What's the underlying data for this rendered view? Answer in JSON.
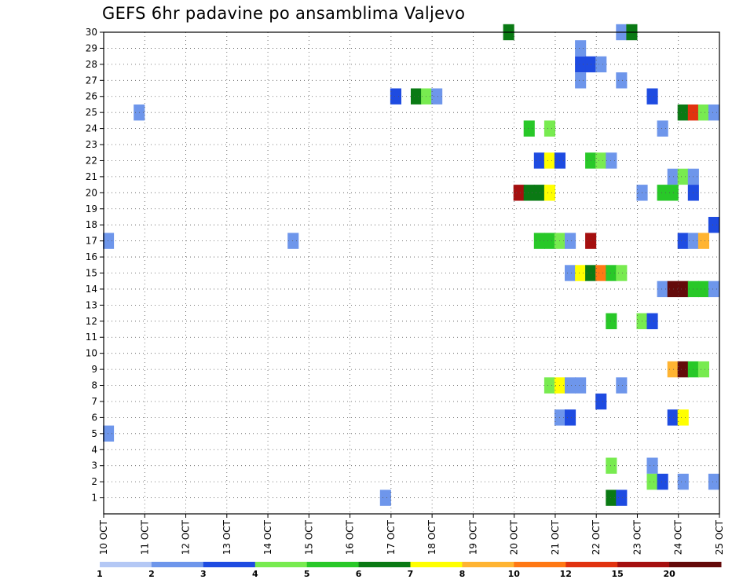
{
  "chart_data": {
    "type": "heatmap",
    "title": "GEFS 6hr padavine po ansamblima Valjevo",
    "xlabel": "",
    "ylabel": "",
    "y_ticks": [
      "1",
      "2",
      "3",
      "4",
      "5",
      "6",
      "7",
      "8",
      "9",
      "10",
      "11",
      "12",
      "13",
      "14",
      "15",
      "16",
      "17",
      "18",
      "19",
      "20",
      "21",
      "22",
      "23",
      "24",
      "25",
      "26",
      "27",
      "28",
      "29",
      "30"
    ],
    "x_ticks": [
      "10 OCT",
      "11 OCT",
      "12 OCT",
      "13 OCT",
      "14 OCT",
      "15 OCT",
      "16 OCT",
      "17 OCT",
      "18 OCT",
      "19 OCT",
      "20 OCT",
      "21 OCT",
      "22 OCT",
      "23 OCT",
      "24 OCT",
      "25 OCT"
    ],
    "xlim_days": [
      10,
      25
    ],
    "ylim": [
      0,
      30
    ],
    "time_step_hours": 6,
    "legend": {
      "labels": [
        "1",
        "2",
        "3",
        "4",
        "5",
        "6",
        "7",
        "8",
        "10",
        "12",
        "15",
        "20"
      ],
      "colors": [
        "#b4c8f5",
        "#6e96eb",
        "#1e4be1",
        "#78eb50",
        "#28c828",
        "#0a7a14",
        "#ffff00",
        "#ffb432",
        "#ff7814",
        "#e1320f",
        "#a50f0f",
        "#640a0a"
      ]
    },
    "cells": [
      {
        "m": 30,
        "t": [
          [
            19.75,
            5
          ],
          [
            22.5,
            1
          ],
          [
            22.75,
            5
          ]
        ]
      },
      {
        "m": 29,
        "t": [
          [
            21.5,
            1
          ]
        ]
      },
      {
        "m": 28,
        "t": [
          [
            21.5,
            2
          ],
          [
            21.75,
            2
          ],
          [
            22,
            1
          ]
        ]
      },
      {
        "m": 27,
        "t": [
          [
            21.5,
            1
          ],
          [
            22.5,
            1
          ]
        ]
      },
      {
        "m": 26,
        "t": [
          [
            17,
            2
          ],
          [
            17.5,
            5
          ],
          [
            17.75,
            3
          ],
          [
            18,
            1
          ],
          [
            23.25,
            2
          ]
        ]
      },
      {
        "m": 25,
        "t": [
          [
            10.75,
            1
          ],
          [
            24,
            5
          ],
          [
            24.25,
            9
          ],
          [
            24.5,
            3
          ],
          [
            24.75,
            1
          ]
        ]
      },
      {
        "m": 24,
        "t": [
          [
            20.25,
            4
          ],
          [
            20.75,
            3
          ],
          [
            23.5,
            1
          ]
        ]
      },
      {
        "m": 22,
        "t": [
          [
            20.5,
            2
          ],
          [
            20.75,
            6
          ],
          [
            21,
            2
          ],
          [
            21.75,
            4
          ],
          [
            22,
            3
          ],
          [
            22.25,
            1
          ]
        ]
      },
      {
        "m": 21,
        "t": [
          [
            23.75,
            1
          ],
          [
            24,
            3
          ],
          [
            24.25,
            1
          ]
        ]
      },
      {
        "m": 20,
        "t": [
          [
            20,
            10
          ],
          [
            20.25,
            5
          ],
          [
            20.5,
            5
          ],
          [
            20.75,
            6
          ],
          [
            23,
            1
          ],
          [
            23.5,
            4
          ],
          [
            23.75,
            4
          ],
          [
            24.25,
            2
          ]
        ]
      },
      {
        "m": 18,
        "t": [
          [
            24.75,
            2
          ]
        ]
      },
      {
        "m": 17,
        "t": [
          [
            10,
            1
          ],
          [
            14.5,
            1
          ],
          [
            20.5,
            4
          ],
          [
            20.75,
            4
          ],
          [
            21,
            3
          ],
          [
            21.25,
            1
          ],
          [
            21.75,
            10
          ],
          [
            24,
            2
          ],
          [
            24.25,
            1
          ],
          [
            24.5,
            7
          ]
        ]
      },
      {
        "m": 15,
        "t": [
          [
            21.25,
            1
          ],
          [
            21.5,
            6
          ],
          [
            21.75,
            5
          ],
          [
            22,
            8
          ],
          [
            22.25,
            4
          ],
          [
            22.5,
            3
          ]
        ]
      },
      {
        "m": 14,
        "t": [
          [
            23.5,
            1
          ],
          [
            23.75,
            11
          ],
          [
            24,
            11
          ],
          [
            24.25,
            4
          ],
          [
            24.5,
            4
          ],
          [
            24.75,
            1
          ]
        ]
      },
      {
        "m": 12,
        "t": [
          [
            22.25,
            4
          ],
          [
            23,
            3
          ],
          [
            23.25,
            2
          ]
        ]
      },
      {
        "m": 9,
        "t": [
          [
            23.75,
            7
          ],
          [
            24,
            11
          ],
          [
            24.25,
            4
          ],
          [
            24.5,
            3
          ]
        ]
      },
      {
        "m": 8,
        "t": [
          [
            20.75,
            3
          ],
          [
            21,
            6
          ],
          [
            21.25,
            1
          ],
          [
            21.5,
            1
          ],
          [
            22.5,
            1
          ]
        ]
      },
      {
        "m": 7,
        "t": [
          [
            22,
            2
          ]
        ]
      },
      {
        "m": 6,
        "t": [
          [
            21,
            1
          ],
          [
            21.25,
            2
          ],
          [
            23.75,
            2
          ],
          [
            24,
            6
          ]
        ]
      },
      {
        "m": 5,
        "t": [
          [
            10,
            1
          ]
        ]
      },
      {
        "m": 3,
        "t": [
          [
            22.25,
            3
          ],
          [
            23.25,
            1
          ]
        ]
      },
      {
        "m": 2,
        "t": [
          [
            23.25,
            3
          ],
          [
            23.5,
            2
          ],
          [
            24,
            1
          ],
          [
            24.75,
            1
          ]
        ]
      },
      {
        "m": 1,
        "t": [
          [
            16.75,
            1
          ],
          [
            22.25,
            5
          ],
          [
            22.5,
            2
          ]
        ]
      }
    ]
  }
}
